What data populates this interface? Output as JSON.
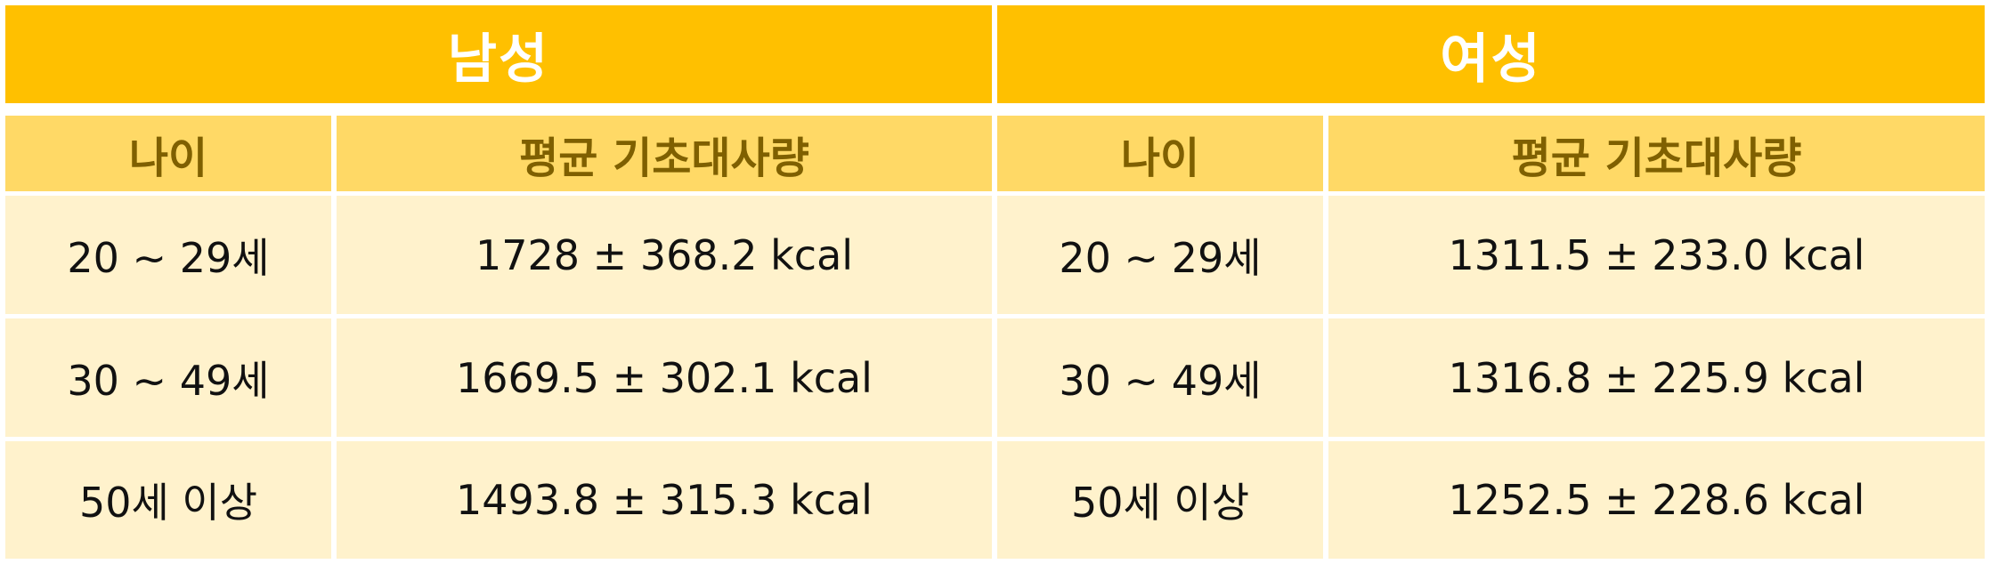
{
  "table": {
    "groups": [
      {
        "label": "남성"
      },
      {
        "label": "여성"
      }
    ],
    "columns": [
      "나이",
      "평균 기초대사량",
      "나이",
      "평균 기초대사량"
    ],
    "rows": [
      [
        "20 ~ 29세",
        "1728 ± 368.2 kcal",
        "20 ~ 29세",
        "1311.5 ± 233.0 kcal"
      ],
      [
        "30 ~ 49세",
        "1669.5 ± 302.1 kcal",
        "30 ~ 49세",
        "1316.8 ± 225.9 kcal"
      ],
      [
        "50세 이상",
        "1493.8 ± 315.3 kcal",
        "50세 이상",
        "1252.5 ± 228.6 kcal"
      ]
    ],
    "colors": {
      "group_header_bg": "#FFC000",
      "group_header_text": "#FFFFFF",
      "column_header_bg": "#FFD966",
      "column_header_text": "#7F6000",
      "data_bg": "#FFF2CC",
      "data_text": "#111111"
    }
  }
}
